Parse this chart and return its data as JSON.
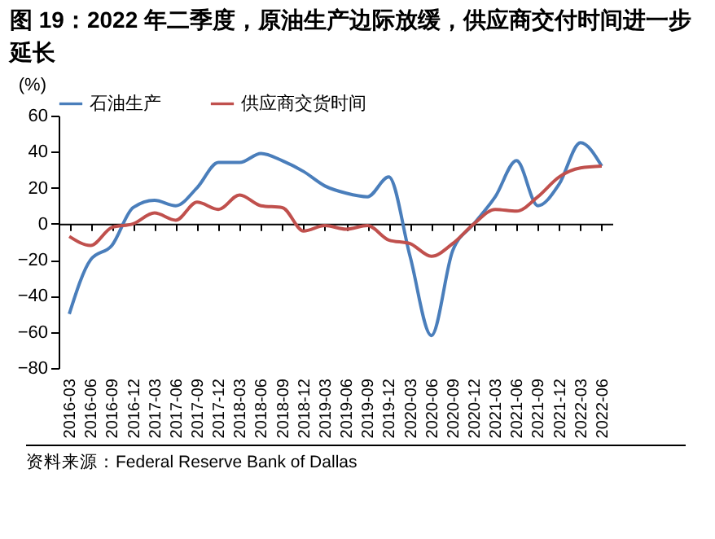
{
  "chart_data": {
    "type": "line",
    "title": "图 19：2022 年二季度，原油生产边际放缓，供应商交付时间进一步延长",
    "ylabel": "(%)",
    "categories": [
      "2016-03",
      "2016-06",
      "2016-09",
      "2016-12",
      "2017-03",
      "2017-06",
      "2017-09",
      "2017-12",
      "2018-03",
      "2018-06",
      "2018-09",
      "2018-12",
      "2019-03",
      "2019-06",
      "2019-09",
      "2019-12",
      "2020-03",
      "2020-06",
      "2020-09",
      "2020-12",
      "2021-03",
      "2021-06",
      "2021-09",
      "2021-12",
      "2022-03",
      "2022-06"
    ],
    "series": [
      {
        "name": "石油生产",
        "color": "#4a7ebb",
        "values": [
          -50,
          -20,
          -12,
          9,
          13,
          10,
          20,
          34,
          34,
          39,
          35,
          29,
          21,
          17,
          15,
          26,
          -18,
          -62,
          -15,
          0,
          15,
          35,
          10,
          22,
          45,
          32
        ]
      },
      {
        "name": "供应商交货时间",
        "color": "#c0504d",
        "values": [
          -7,
          -12,
          -2,
          0,
          6,
          2,
          12,
          8,
          16,
          10,
          9,
          -4,
          -1,
          -3,
          -1,
          -9,
          -11,
          -18,
          -11,
          0,
          8,
          7,
          15,
          26,
          31,
          32
        ]
      }
    ],
    "ylim": [
      -80,
      60
    ],
    "yticks": [
      -80,
      -60,
      -40,
      -20,
      0,
      20,
      40,
      60
    ],
    "legend": "top",
    "annotations": [
      "资料来源：Federal Reserve Bank of Dallas"
    ]
  }
}
